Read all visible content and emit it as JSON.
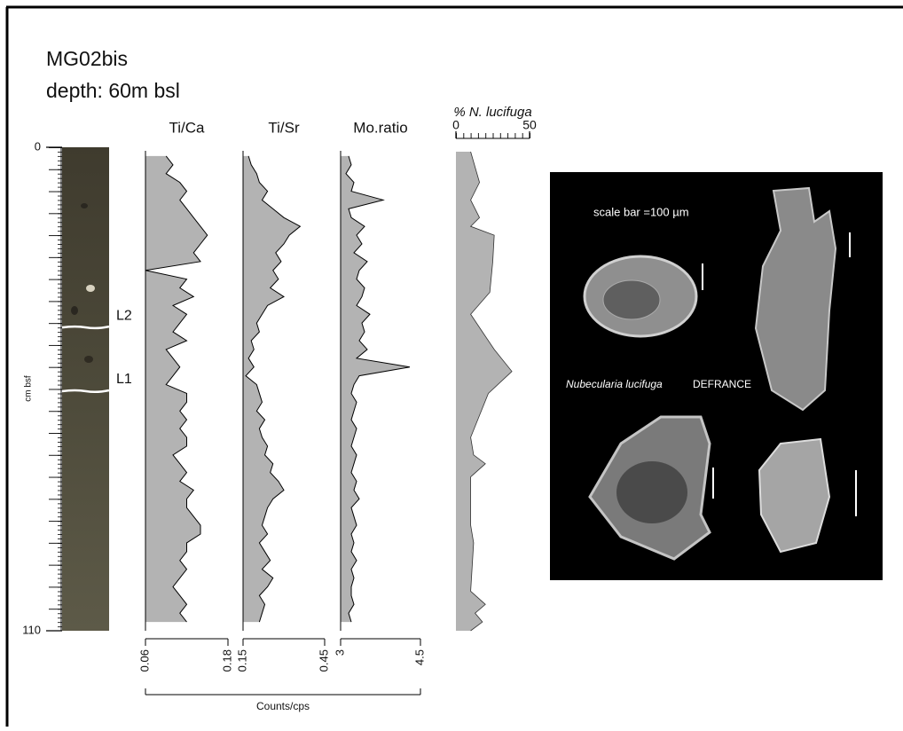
{
  "title": "MG02bis",
  "subtitle": "depth: 60m bsl",
  "depth_axis": {
    "label": "cm bsf",
    "ylim": [
      0,
      110
    ],
    "yticks": [
      0,
      110
    ]
  },
  "layers": [
    {
      "label": "L2",
      "depth": 41
    },
    {
      "label": "L1",
      "depth": 55.5
    }
  ],
  "x_axis_label": "Counts/cps",
  "photo": {
    "scale_text": "scale bar =100 µm",
    "species": "Nubecularia lucifuga",
    "author": "DEFRANCE"
  },
  "chart_data": [
    {
      "type": "area",
      "title": "Ti/Ca",
      "xaxis": "bottom",
      "color": "#b3b3b3",
      "line_color": "#000000",
      "depth": [
        2,
        4,
        6,
        8,
        10,
        12,
        14,
        16,
        18,
        20,
        22,
        24,
        26,
        28,
        30,
        32,
        34,
        36,
        38,
        40,
        42,
        44,
        46,
        48,
        50,
        52,
        54,
        56,
        58,
        60,
        62,
        64,
        66,
        68,
        70,
        72,
        74,
        76,
        78,
        80,
        82,
        84,
        86,
        88,
        90,
        92,
        94,
        96,
        98,
        100,
        102,
        104,
        106,
        108
      ],
      "values": [
        0.09,
        0.1,
        0.09,
        0.11,
        0.12,
        0.11,
        0.12,
        0.13,
        0.14,
        0.15,
        0.14,
        0.13,
        0.14,
        0.06,
        0.12,
        0.11,
        0.13,
        0.1,
        0.12,
        0.11,
        0.1,
        0.12,
        0.09,
        0.1,
        0.11,
        0.1,
        0.09,
        0.12,
        0.12,
        0.11,
        0.12,
        0.11,
        0.12,
        0.12,
        0.1,
        0.11,
        0.12,
        0.11,
        0.13,
        0.12,
        0.12,
        0.13,
        0.14,
        0.14,
        0.12,
        0.12,
        0.11,
        0.12,
        0.11,
        0.1,
        0.11,
        0.12,
        0.11,
        0.12
      ],
      "xlim": [
        0.06,
        0.18
      ],
      "xticks": [
        0.06,
        0.18
      ]
    },
    {
      "type": "area",
      "title": "Ti/Sr",
      "xaxis": "bottom",
      "color": "#b3b3b3",
      "line_color": "#000000",
      "depth": [
        2,
        4,
        6,
        8,
        10,
        12,
        14,
        16,
        18,
        20,
        22,
        24,
        26,
        28,
        30,
        32,
        34,
        36,
        38,
        40,
        42,
        44,
        46,
        48,
        50,
        52,
        54,
        56,
        58,
        60,
        62,
        64,
        66,
        68,
        70,
        72,
        74,
        76,
        78,
        80,
        82,
        84,
        86,
        88,
        90,
        92,
        94,
        96,
        98,
        100,
        102,
        104,
        106,
        108
      ],
      "values": [
        0.17,
        0.18,
        0.2,
        0.21,
        0.24,
        0.22,
        0.26,
        0.3,
        0.36,
        0.32,
        0.3,
        0.27,
        0.29,
        0.26,
        0.28,
        0.25,
        0.3,
        0.24,
        0.22,
        0.2,
        0.21,
        0.18,
        0.19,
        0.17,
        0.19,
        0.16,
        0.2,
        0.21,
        0.22,
        0.2,
        0.23,
        0.21,
        0.22,
        0.24,
        0.23,
        0.26,
        0.25,
        0.28,
        0.3,
        0.26,
        0.24,
        0.23,
        0.22,
        0.24,
        0.21,
        0.23,
        0.25,
        0.22,
        0.26,
        0.24,
        0.21,
        0.23,
        0.22,
        0.21
      ],
      "xlim": [
        0.15,
        0.45
      ],
      "xticks": [
        0.15,
        0.45
      ]
    },
    {
      "type": "area",
      "title": "Mo.ratio",
      "xaxis": "bottom",
      "color": "#b3b3b3",
      "line_color": "#000000",
      "depth": [
        2,
        4,
        6,
        8,
        10,
        12,
        14,
        16,
        18,
        20,
        22,
        24,
        26,
        28,
        30,
        32,
        34,
        36,
        38,
        40,
        42,
        44,
        46,
        48,
        50,
        52,
        54,
        56,
        58,
        60,
        62,
        64,
        66,
        68,
        70,
        72,
        74,
        76,
        78,
        80,
        82,
        84,
        86,
        88,
        90,
        92,
        94,
        96,
        98,
        100,
        102,
        104,
        106,
        108
      ],
      "values": [
        3.15,
        3.2,
        3.1,
        3.25,
        3.2,
        3.8,
        3.15,
        3.2,
        3.45,
        3.3,
        3.4,
        3.25,
        3.5,
        3.35,
        3.3,
        3.45,
        3.4,
        3.3,
        3.55,
        3.4,
        3.45,
        3.35,
        3.5,
        3.3,
        4.3,
        3.35,
        3.25,
        3.2,
        3.3,
        3.25,
        3.2,
        3.3,
        3.25,
        3.2,
        3.3,
        3.25,
        3.2,
        3.3,
        3.25,
        3.35,
        3.2,
        3.25,
        3.3,
        3.2,
        3.25,
        3.2,
        3.3,
        3.2,
        3.25,
        3.2,
        3.2,
        3.25,
        3.15,
        3.2
      ],
      "xlim": [
        3,
        4.5
      ],
      "xticks": [
        3,
        4.5
      ]
    },
    {
      "type": "area",
      "title": "% N. lucifuga",
      "xaxis": "top",
      "color": "#b3b3b3",
      "line_color": "#000000",
      "depth": [
        1,
        8,
        12,
        16,
        18,
        20,
        26,
        33,
        38,
        42,
        46,
        51,
        56,
        61,
        66,
        70,
        72,
        75,
        86,
        90,
        101,
        104,
        106,
        108,
        110
      ],
      "values": [
        10,
        16,
        10,
        16,
        10,
        26,
        25,
        23,
        10,
        18,
        26,
        38,
        22,
        16,
        10,
        12,
        20,
        10,
        10,
        12,
        10,
        20,
        13,
        18,
        10
      ],
      "xlim": [
        0,
        50
      ],
      "xticks": [
        0,
        50
      ]
    }
  ]
}
